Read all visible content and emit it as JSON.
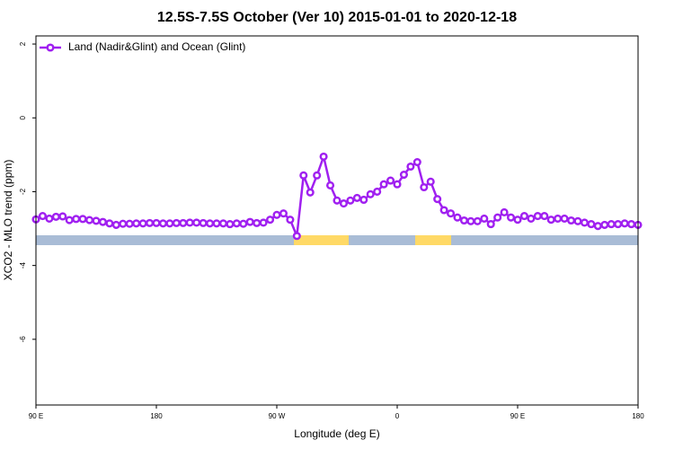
{
  "chart_data": {
    "type": "line",
    "title": "12.5S-7.5S October (Ver 10)   2015-01-01 to 2020-12-18",
    "x_label": "Longitude (deg E)",
    "y_label": "XCO2 - MLO trend (ppm)",
    "x": [
      90,
      95,
      100,
      105,
      110,
      115,
      120,
      125,
      130,
      135,
      140,
      145,
      150,
      155,
      160,
      165,
      170,
      175,
      180,
      185,
      190,
      195,
      200,
      205,
      210,
      215,
      220,
      225,
      230,
      235,
      240,
      245,
      250,
      255,
      260,
      265,
      270,
      275,
      280,
      285,
      290,
      295,
      300,
      305,
      310,
      315,
      320,
      325,
      330,
      335,
      340,
      345,
      350,
      355,
      360,
      365,
      370,
      375,
      380,
      385,
      390,
      395,
      400,
      405,
      410,
      415,
      420,
      425,
      430,
      435,
      440,
      445,
      450,
      455,
      460,
      465,
      470,
      475,
      480,
      485,
      490,
      495,
      500,
      505,
      510,
      515,
      520,
      525,
      530,
      535,
      540
    ],
    "series": [
      {
        "name": "Land (Nadir&Glint) and Ocean (Glint)",
        "color": "#a020f0",
        "values": [
          -2.75,
          -2.66,
          -2.73,
          -2.68,
          -2.67,
          -2.77,
          -2.74,
          -2.74,
          -2.77,
          -2.79,
          -2.82,
          -2.86,
          -2.9,
          -2.87,
          -2.87,
          -2.86,
          -2.86,
          -2.85,
          -2.85,
          -2.86,
          -2.86,
          -2.85,
          -2.85,
          -2.84,
          -2.84,
          -2.85,
          -2.86,
          -2.86,
          -2.86,
          -2.88,
          -2.86,
          -2.87,
          -2.82,
          -2.85,
          -2.84,
          -2.76,
          -2.63,
          -2.59,
          -2.76,
          -3.2,
          -1.56,
          -2.02,
          -1.56,
          -1.05,
          -1.83,
          -2.24,
          -2.32,
          -2.24,
          -2.17,
          -2.22,
          -2.07,
          -2.0,
          -1.8,
          -1.7,
          -1.8,
          -1.54,
          -1.32,
          -1.2,
          -1.88,
          -1.73,
          -2.2,
          -2.5,
          -2.59,
          -2.7,
          -2.78,
          -2.8,
          -2.8,
          -2.73,
          -2.88,
          -2.7,
          -2.56,
          -2.7,
          -2.76,
          -2.66,
          -2.73,
          -2.66,
          -2.66,
          -2.76,
          -2.73,
          -2.73,
          -2.78,
          -2.8,
          -2.84,
          -2.88,
          -2.93,
          -2.9,
          -2.88,
          -2.88,
          -2.86,
          -2.88,
          -2.9
        ]
      }
    ],
    "xlim": [
      90,
      540
    ],
    "xticks": [
      {
        "value": 90,
        "label": "90 E"
      },
      180,
      {
        "value": 270,
        "label": "90 W"
      },
      {
        "value": 360,
        "label": "0"
      },
      {
        "value": 450,
        "label": "90 E"
      },
      {
        "value": 540,
        "label": "180"
      }
    ],
    "ylim": [
      2.22,
      -7.78
    ],
    "yticks": [
      2,
      0,
      -2,
      -4,
      -6
    ],
    "legend": "top-left"
  }
}
